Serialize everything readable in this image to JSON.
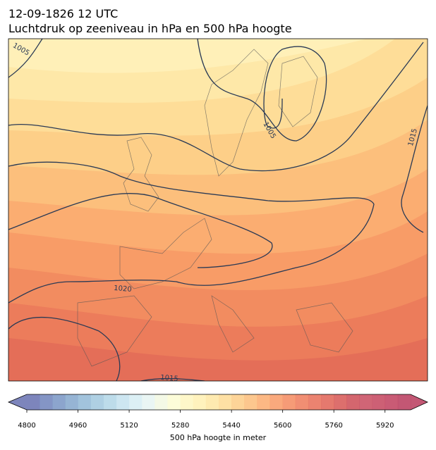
{
  "header": {
    "title": "12-09-1826 12 UTC",
    "subtitle": "Luchtdruk op zeeniveau in hPa en 500 hPa hoogte"
  },
  "isobar_labels": [
    1005,
    1005,
    1015,
    1020,
    1015
  ],
  "colorbar": {
    "label": "500 hPa hoogte in meter",
    "lim": [
      4800,
      6000
    ],
    "ticks": [
      4800,
      4960,
      5120,
      5280,
      5440,
      5600,
      5760,
      5920
    ],
    "colors": [
      "#6670b0",
      "#6e83bb",
      "#7895c4",
      "#84a7cd",
      "#92b8d6",
      "#a1c8de",
      "#b2d6e6",
      "#c4e2ee",
      "#d6edf3",
      "#e6f4f2",
      "#f2f8e2",
      "#fbfbd2",
      "#fef6c0",
      "#fff0b2",
      "#fee6a2",
      "#fedb94",
      "#fdcd86",
      "#fcbd7a",
      "#fbab6f",
      "#f99a66",
      "#f5895f",
      "#ef7a5a",
      "#e86d57",
      "#e06255",
      "#d75654",
      "#cd4b55",
      "#c84a5e",
      "#c4445d",
      "#bf3e5d",
      "#b8395c"
    ],
    "extend_colors": [
      "#6670b0",
      "#b8395c"
    ]
  }
}
